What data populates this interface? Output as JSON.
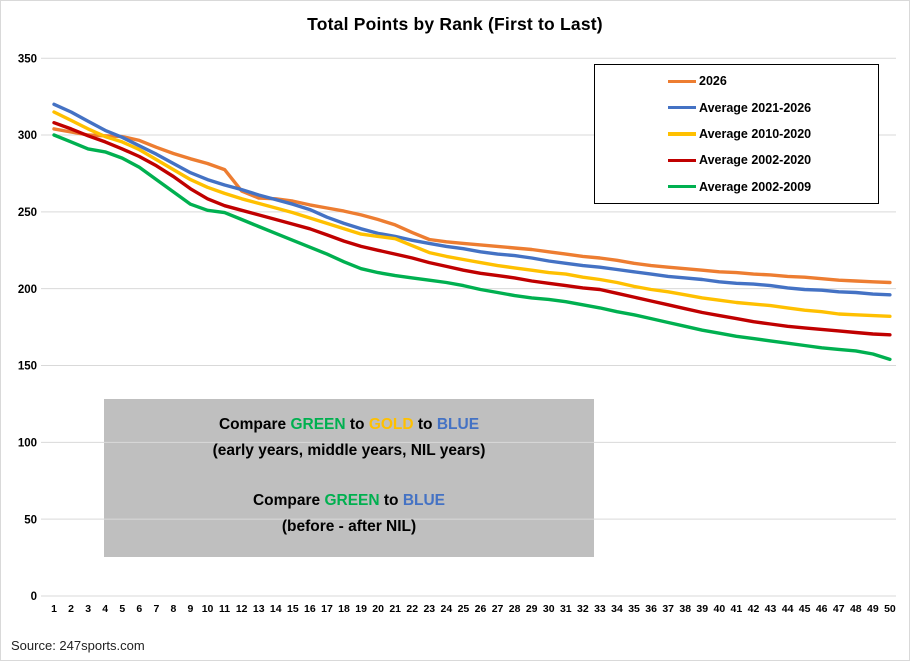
{
  "title": "Total Points by Rank (First to Last)",
  "source_note": "Source: 247sports.com",
  "annotation": {
    "line1": {
      "s0": "Compare ",
      "s1": "GREEN",
      "s2": " to ",
      "s3": "GOLD",
      "s4": " to ",
      "s5": "BLUE"
    },
    "line2": "(early years, middle years, NIL years)",
    "line3": {
      "s0": "Compare ",
      "s1": "GREEN",
      "s2": " to ",
      "s3": "BLUE"
    },
    "line4": "(before - after NIL)"
  },
  "chart_data": {
    "type": "line",
    "title": "Total Points by Rank (First to Last)",
    "xlabel": "",
    "ylabel": "",
    "ylim": [
      0,
      350
    ],
    "y_ticks": [
      350,
      300,
      250,
      200,
      150,
      100,
      50,
      0
    ],
    "grid": "horizontal",
    "gridline_color": "#d9d9d9",
    "legend_position": "upper right",
    "palette": {
      "orange": "#ED7D31",
      "blue": "#4472C4",
      "gold": "#FFC000",
      "red": "#C00000",
      "green": "#00B050"
    },
    "categories": [
      1,
      2,
      3,
      4,
      5,
      6,
      7,
      8,
      9,
      10,
      11,
      12,
      13,
      14,
      15,
      16,
      17,
      18,
      19,
      20,
      21,
      22,
      23,
      24,
      25,
      26,
      27,
      28,
      29,
      30,
      31,
      32,
      33,
      34,
      35,
      36,
      37,
      38,
      39,
      40,
      41,
      42,
      43,
      44,
      45,
      46,
      47,
      48,
      49,
      50
    ],
    "series": [
      {
        "name": "2026",
        "color": "#ED7D31",
        "values": [
          304,
          302,
          300,
          299.5,
          299,
          296.5,
          292,
          288,
          284.5,
          281.5,
          277.5,
          263.5,
          259,
          258.5,
          257,
          254.5,
          252.5,
          250.5,
          248,
          245,
          241.5,
          236.5,
          232,
          230.5,
          229.5,
          228.5,
          227.5,
          226.5,
          225.5,
          224,
          222.5,
          221,
          220,
          218.5,
          216.5,
          215,
          214,
          213,
          212,
          211,
          210.5,
          209.5,
          209,
          208,
          207.5,
          206.5,
          205.5,
          205,
          204.5,
          204
        ]
      },
      {
        "name": "Average 2021-2026",
        "color": "#4472C4",
        "values": [
          320,
          315,
          309,
          303,
          298.5,
          293,
          287.5,
          281.5,
          275.5,
          271,
          267.5,
          264.5,
          261,
          258,
          255,
          251.5,
          246.5,
          242.5,
          239,
          236,
          234,
          231.5,
          229.5,
          227.5,
          226,
          224,
          222.5,
          221.5,
          220,
          218,
          216.5,
          215,
          214,
          212.5,
          211,
          209.5,
          208,
          207,
          206,
          204.5,
          203.5,
          203,
          202,
          200.5,
          199.5,
          199,
          198,
          197.5,
          196.5,
          196
        ]
      },
      {
        "name": "Average 2010-2020",
        "color": "#FFC000",
        "values": [
          315,
          309.5,
          304,
          299,
          295.5,
          290.5,
          284,
          277.5,
          271,
          266,
          262,
          258.5,
          255.5,
          252.5,
          249.5,
          246,
          242.5,
          239,
          235.5,
          234,
          232.5,
          228,
          223.5,
          221,
          219,
          217,
          215,
          213.5,
          212,
          210.5,
          209.5,
          207.5,
          206,
          204,
          201.5,
          199.5,
          198,
          196,
          194,
          192.5,
          191,
          190,
          189,
          187.5,
          186,
          185,
          183.5,
          183,
          182.5,
          182
        ]
      },
      {
        "name": "Average 2002-2020",
        "color": "#C00000",
        "values": [
          308,
          304,
          299.5,
          295.5,
          291,
          286,
          280,
          273,
          265,
          258.5,
          254,
          251,
          248,
          245,
          242,
          239,
          235,
          231,
          227.5,
          225,
          222.5,
          220,
          217,
          214.5,
          212,
          210,
          208.5,
          207,
          205,
          203.5,
          202,
          200.5,
          199.5,
          197,
          194.5,
          192,
          189.5,
          187,
          184.5,
          182.5,
          180.5,
          178.5,
          177,
          175.5,
          174.5,
          173.5,
          172.5,
          171.5,
          170.5,
          170
        ]
      },
      {
        "name": "Average 2002-2009",
        "color": "#00B050",
        "values": [
          300,
          295.5,
          291,
          289,
          285,
          279,
          271,
          263,
          255,
          251,
          249.5,
          245,
          240.5,
          236,
          231.5,
          227,
          222.5,
          217.5,
          213,
          210.5,
          208.5,
          207,
          205.5,
          204,
          202,
          199.5,
          197.5,
          195.5,
          194,
          193,
          191.5,
          189.5,
          187.5,
          185,
          183,
          180.5,
          178,
          175.5,
          173,
          171,
          169,
          167.5,
          166,
          164.5,
          163,
          161.5,
          160.5,
          159.5,
          157.5,
          154
        ]
      }
    ]
  }
}
